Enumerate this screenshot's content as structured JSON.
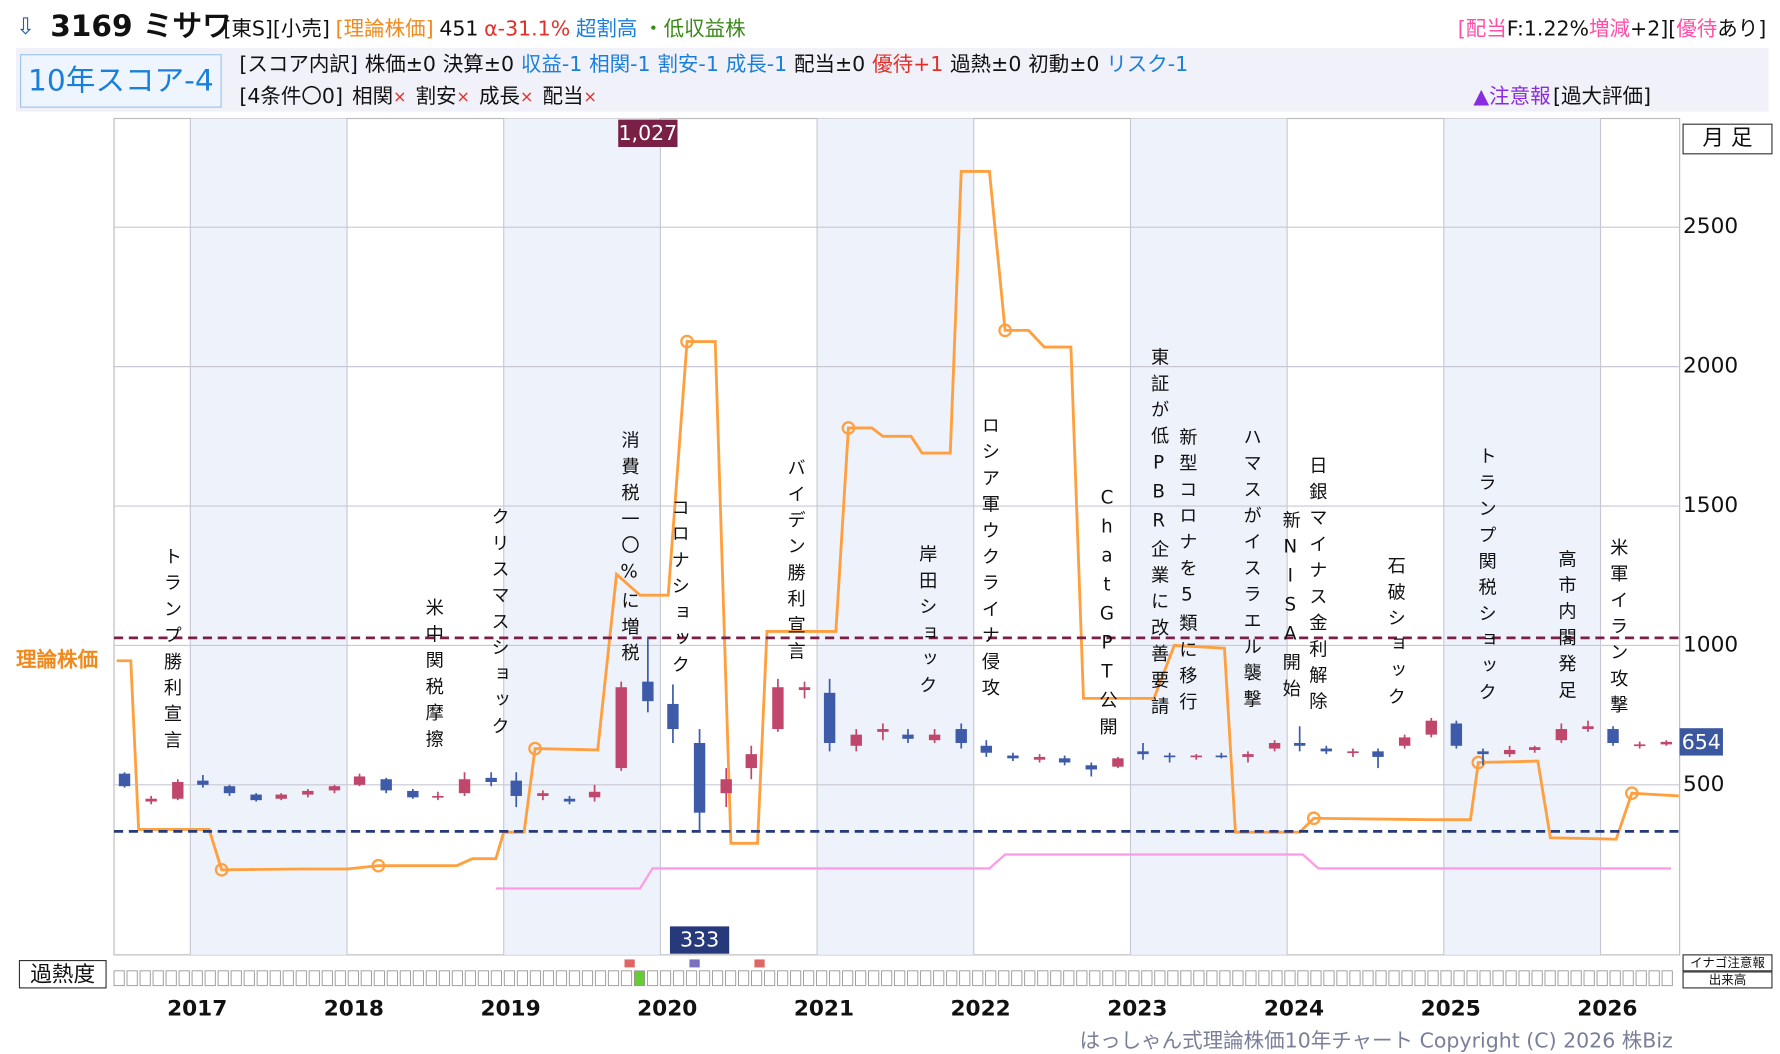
{
  "header": {
    "icon": "⇩",
    "title": "3169 ミサワ",
    "parts": [
      {
        "text": "[東S][小売]",
        "color": "#111111"
      },
      {
        "text": "[理論株価]",
        "color": "#f08a1c"
      },
      {
        "text": "451",
        "color": "#111111"
      },
      {
        "text": "α-31.1%",
        "color": "#e0302a"
      },
      {
        "text": "超割高",
        "color": "#1a7fd9"
      },
      {
        "text": "・低収益株",
        "color": "#3a8a1a"
      }
    ],
    "right_parts": [
      {
        "text": "[配当",
        "color": "#ff4fa8"
      },
      {
        "text": "F:1.22%",
        "color": "#111111"
      },
      {
        "text": "増減",
        "color": "#ff4fa8"
      },
      {
        "text": "+2][",
        "color": "#111111"
      },
      {
        "text": "優待",
        "color": "#ff4fa8"
      },
      {
        "text": "あり]",
        "color": "#111111"
      }
    ],
    "score": "10年スコア-4",
    "breakdown": [
      {
        "text": "[スコア内訳]",
        "color": "#111111"
      },
      {
        "text": "株価±0",
        "color": "#111111"
      },
      {
        "text": "決算±0",
        "color": "#111111"
      },
      {
        "text": "収益-1",
        "color": "#1a7fd9"
      },
      {
        "text": "相関-1",
        "color": "#1a7fd9"
      },
      {
        "text": "割安-1",
        "color": "#1a7fd9"
      },
      {
        "text": "成長-1",
        "color": "#1a7fd9"
      },
      {
        "text": "配当±0",
        "color": "#111111"
      },
      {
        "text": "優待+1",
        "color": "#e0302a"
      },
      {
        "text": "過熱±0",
        "color": "#111111"
      },
      {
        "text": "初動±0",
        "color": "#111111"
      },
      {
        "text": "リスク-1",
        "color": "#1a7fd9"
      }
    ],
    "conditions_title": "[4条件〇0]",
    "mark_color": "#e0302a",
    "conditions": [
      {
        "item": "相関",
        "mark": "×"
      },
      {
        "item": "割安",
        "mark": "×"
      },
      {
        "item": "成長",
        "mark": "×"
      },
      {
        "item": "配当",
        "mark": "×"
      }
    ],
    "warning": [
      {
        "text": "▲注意報",
        "color": "#8a2be2"
      },
      {
        "text": "[過大評価]",
        "color": "#111111"
      }
    ]
  },
  "chart_data": {
    "type": "candlestick",
    "period": "月 足",
    "xlim": [
      2016.513,
      2026.505
    ],
    "xticks": [
      2017,
      2018,
      2019,
      2020,
      2021,
      2022,
      2023,
      2024,
      2025,
      2026
    ],
    "ylim": [
      -110,
      2890
    ],
    "yticks": [
      500,
      1000,
      1500,
      2000,
      2500
    ],
    "grid": true,
    "up_color": "#c0476b",
    "down_color": "#3d5ba8",
    "candles": {
      "x": [
        2016.58,
        2016.75,
        2016.92,
        2017.08,
        2017.25,
        2017.42,
        2017.58,
        2017.75,
        2017.92,
        2018.08,
        2018.25,
        2018.42,
        2018.58,
        2018.75,
        2018.92,
        2019.08,
        2019.25,
        2019.42,
        2019.58,
        2019.75,
        2019.92,
        2020.08,
        2020.25,
        2020.42,
        2020.58,
        2020.75,
        2020.92,
        2021.08,
        2021.25,
        2021.42,
        2021.58,
        2021.75,
        2021.92,
        2022.08,
        2022.25,
        2022.42,
        2022.58,
        2022.75,
        2022.92,
        2023.08,
        2023.25,
        2023.42,
        2023.58,
        2023.75,
        2023.92,
        2024.08,
        2024.25,
        2024.42,
        2024.58,
        2024.75,
        2024.92,
        2025.08,
        2025.25,
        2025.42,
        2025.58,
        2025.75,
        2025.92,
        2026.08,
        2026.25,
        2026.42
      ],
      "open": [
        540,
        440,
        450,
        515,
        495,
        465,
        450,
        465,
        480,
        500,
        520,
        478,
        455,
        470,
        525,
        515,
        460,
        450,
        455,
        560,
        870,
        790,
        650,
        470,
        560,
        700,
        840,
        830,
        640,
        690,
        680,
        660,
        700,
        640,
        605,
        590,
        595,
        570,
        565,
        620,
        605,
        600,
        605,
        600,
        630,
        650,
        630,
        615,
        620,
        640,
        680,
        720,
        620,
        610,
        625,
        660,
        700,
        700,
        640,
        645
      ],
      "high": [
        545,
        460,
        520,
        535,
        500,
        470,
        470,
        485,
        500,
        540,
        525,
        485,
        475,
        545,
        545,
        545,
        480,
        460,
        500,
        870,
        1027,
        860,
        700,
        560,
        640,
        880,
        870,
        880,
        700,
        720,
        700,
        700,
        720,
        660,
        615,
        610,
        605,
        580,
        600,
        650,
        615,
        610,
        615,
        620,
        660,
        710,
        640,
        630,
        630,
        680,
        740,
        730,
        630,
        640,
        640,
        720,
        730,
        710,
        655,
        660
      ],
      "low": [
        490,
        430,
        445,
        490,
        460,
        440,
        445,
        455,
        470,
        495,
        470,
        450,
        445,
        460,
        495,
        420,
        445,
        430,
        440,
        550,
        760,
        650,
        333,
        420,
        520,
        690,
        810,
        620,
        620,
        660,
        650,
        650,
        630,
        600,
        585,
        580,
        570,
        530,
        560,
        590,
        580,
        590,
        595,
        580,
        620,
        620,
        610,
        600,
        560,
        630,
        670,
        630,
        570,
        600,
        615,
        650,
        690,
        640,
        630,
        640
      ],
      "close": [
        495,
        450,
        510,
        500,
        470,
        445,
        465,
        478,
        495,
        530,
        480,
        455,
        460,
        520,
        510,
        460,
        470,
        440,
        475,
        850,
        800,
        700,
        400,
        520,
        610,
        850,
        850,
        650,
        680,
        700,
        665,
        680,
        650,
        615,
        595,
        600,
        580,
        555,
        595,
        610,
        600,
        605,
        600,
        610,
        650,
        640,
        620,
        620,
        600,
        670,
        730,
        640,
        610,
        625,
        635,
        700,
        710,
        650,
        645,
        654
      ]
    },
    "theoretical_price": {
      "name": "理論株価",
      "color": "#ffa040",
      "x": [
        2016.53,
        2016.62,
        2016.67,
        2017.12,
        2017.2,
        2017.7,
        2018.0,
        2018.2,
        2018.7,
        2018.8,
        2018.95,
        2019.0,
        2019.13,
        2019.2,
        2019.6,
        2019.72,
        2019.87,
        2020.05,
        2020.17,
        2020.35,
        2020.45,
        2020.62,
        2020.68,
        2020.85,
        2021.12,
        2021.2,
        2021.35,
        2021.42,
        2021.6,
        2021.67,
        2021.85,
        2021.92,
        2022.1,
        2022.2,
        2022.35,
        2022.45,
        2022.62,
        2022.7,
        2022.95,
        2023.15,
        2023.28,
        2023.6,
        2023.67,
        2024.08,
        2024.17,
        2024.9,
        2025.17,
        2025.22,
        2025.6,
        2025.68,
        2026.1,
        2026.2,
        2026.5
      ],
      "values": [
        945,
        945,
        340,
        340,
        195,
        198,
        198,
        210,
        210,
        235,
        235,
        330,
        330,
        630,
        625,
        1255,
        1180,
        1180,
        2090,
        2090,
        290,
        290,
        1050,
        1050,
        1050,
        1780,
        1780,
        1750,
        1750,
        1690,
        1690,
        2700,
        2700,
        2130,
        2130,
        2070,
        2070,
        810,
        810,
        810,
        1000,
        990,
        330,
        330,
        380,
        375,
        375,
        580,
        585,
        310,
        305,
        470,
        460
      ]
    },
    "theory_markers": {
      "x": [
        2017.2,
        2018.2,
        2019.2,
        2020.17,
        2021.2,
        2022.2,
        2024.17,
        2025.22,
        2026.2
      ],
      "values": [
        195,
        210,
        630,
        2090,
        1780,
        2130,
        380,
        580,
        470
      ]
    },
    "lower_line": {
      "color": "#ff9be6",
      "x": [
        2018.95,
        2019.87,
        2019.95,
        2022.1,
        2022.2,
        2024.1,
        2024.2,
        2026.45
      ],
      "values": [
        128,
        128,
        200,
        200,
        250,
        250,
        200,
        200
      ]
    },
    "high_line": {
      "value": 1027,
      "label": "1,027",
      "color": "#7a1f45"
    },
    "low_line": {
      "value": 333,
      "color": "#26397a"
    },
    "last_price": {
      "value": 654,
      "color": "#3b57a0"
    },
    "events": [
      {
        "label": "トランプ勝利宣言",
        "x": 2016.88
      },
      {
        "label": "米中関税摩擦",
        "x": 2018.55
      },
      {
        "label": "クリスマスショック",
        "x": 2018.97
      },
      {
        "label": "消費税一〇%に増税",
        "x": 2019.8
      },
      {
        "label": "コロナショック",
        "x": 2020.12
      },
      {
        "label": "バイデン勝利宣言",
        "x": 2020.86
      },
      {
        "label": "岸田ショック",
        "x": 2021.7
      },
      {
        "label": "ロシア軍ウクライナ侵攻",
        "x": 2022.1
      },
      {
        "label": "ChatGPT公開",
        "x": 2022.85
      },
      {
        "label": "東証が低PBR企業に改善要請",
        "x": 2023.18
      },
      {
        "label": "新型コロナを5類に移行",
        "x": 2023.36
      },
      {
        "label": "ハマスがイスラエル襲撃",
        "x": 2023.77
      },
      {
        "label": "新NISA開始",
        "x": 2024.02
      },
      {
        "label": "日銀マイナス金利解除",
        "x": 2024.19
      },
      {
        "label": "石破ショック",
        "x": 2024.69
      },
      {
        "label": "トランプ関税ショック",
        "x": 2025.27
      },
      {
        "label": "高市内閣発足",
        "x": 2025.78
      },
      {
        "label": "米軍イラン攻撃",
        "x": 2026.11
      }
    ],
    "overheat_label": "過熱度",
    "inago_label": "イナゴ注意報",
    "volume_label": "出来高"
  },
  "footer": "はっしゃん式理論株価10年チャート Copyright (C) 2026 株Biz"
}
